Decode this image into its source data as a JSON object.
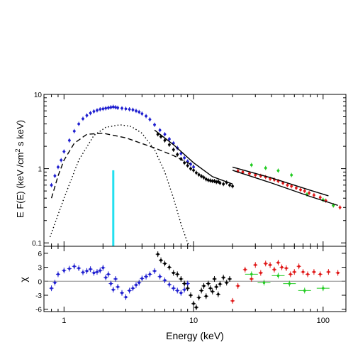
{
  "chart_data": [
    {
      "type": "scatter",
      "panel": "spectrum",
      "title": "",
      "xlabel": "Energy (keV)",
      "ylabel": "E F(E) (keV /cm",
      "ylabel_sup": "2",
      "ylabel_tail": " s keV)",
      "xscale": "log",
      "yscale": "log",
      "xlim": [
        0.7,
        150
      ],
      "ylim": [
        0.09,
        10
      ],
      "y_ticks": [
        0.1,
        1,
        10
      ],
      "y_tick_labels": [
        "0.1",
        "1",
        "10"
      ],
      "x_ticks": [
        1,
        10,
        100
      ],
      "colors": {
        "blue": "#1f1fd0",
        "black": "#000000",
        "red": "#e01818",
        "green": "#22cc22",
        "line": "#cc44aa",
        "cyan": "#22e0f0"
      },
      "series": [
        {
          "color": "blue",
          "style": "points",
          "x": [
            0.8,
            0.85,
            0.9,
            0.95,
            1.0,
            1.1,
            1.2,
            1.3,
            1.4,
            1.5,
            1.6,
            1.7,
            1.8,
            1.9,
            2.0,
            2.1,
            2.2,
            2.3,
            2.4,
            2.5,
            2.6,
            2.8,
            3.0,
            3.2,
            3.4,
            3.6,
            3.8,
            4.0,
            4.3,
            4.6,
            5.0,
            5.5,
            6.0,
            6.5,
            7.0,
            7.5,
            8.0,
            8.5,
            9.0,
            9.5,
            10.0
          ],
          "y": [
            0.6,
            0.8,
            1.05,
            1.3,
            1.7,
            2.4,
            3.2,
            4.0,
            4.7,
            5.2,
            5.6,
            5.9,
            6.1,
            6.3,
            6.4,
            6.5,
            6.6,
            6.7,
            6.8,
            6.7,
            6.6,
            6.5,
            6.4,
            6.3,
            6.2,
            6.0,
            5.8,
            5.5,
            5.1,
            4.6,
            3.9,
            3.3,
            2.9,
            2.5,
            2.2,
            1.9,
            1.6,
            1.4,
            1.25,
            1.15,
            1.05
          ]
        },
        {
          "color": "black",
          "style": "points",
          "x": [
            5.3,
            5.6,
            6.0,
            6.5,
            7.0,
            7.5,
            8.0,
            8.5,
            9.0,
            9.5,
            10.0,
            10.5,
            11.0,
            11.5,
            12.0,
            12.5,
            13.0,
            13.5,
            14.0,
            14.5,
            15.0,
            15.5,
            16.0,
            17.0,
            18.0,
            19.0,
            20.0
          ],
          "y": [
            2.9,
            2.7,
            2.4,
            2.1,
            1.8,
            1.55,
            1.35,
            1.2,
            1.1,
            1.0,
            0.95,
            0.88,
            0.83,
            0.79,
            0.76,
            0.72,
            0.7,
            0.69,
            0.68,
            0.68,
            0.66,
            0.67,
            0.64,
            0.62,
            0.65,
            0.6,
            0.58
          ]
        },
        {
          "color": "red",
          "style": "points",
          "x": [
            22,
            24,
            27,
            30,
            33,
            36,
            39,
            42,
            45,
            49,
            53,
            57,
            62,
            67,
            72,
            78,
            85,
            95,
            105,
            120,
            135
          ],
          "y": [
            0.93,
            0.9,
            0.86,
            0.82,
            0.8,
            0.77,
            0.73,
            0.71,
            0.68,
            0.64,
            0.6,
            0.58,
            0.55,
            0.52,
            0.5,
            0.47,
            0.44,
            0.41,
            0.37,
            0.32,
            0.3
          ]
        },
        {
          "color": "green",
          "style": "points",
          "x": [
            28,
            36,
            45,
            57,
            75,
            100,
            120
          ],
          "y": [
            1.12,
            1.02,
            0.94,
            0.82,
            0.45,
            0.38,
            0.32
          ]
        },
        {
          "color": "black",
          "style": "solid",
          "x": [
            5.0,
            7.0,
            10.0,
            14.0,
            20.0
          ],
          "y": [
            3.3,
            2.1,
            1.2,
            0.78,
            0.62
          ]
        },
        {
          "color": "black",
          "style": "solid",
          "x": [
            20,
            40,
            80,
            110
          ],
          "y": [
            1.05,
            0.75,
            0.51,
            0.43
          ]
        },
        {
          "color": "black",
          "style": "solid",
          "x": [
            20,
            40,
            80,
            130
          ],
          "y": [
            0.95,
            0.64,
            0.42,
            0.32
          ]
        },
        {
          "color": "black",
          "style": "dashed",
          "x": [
            0.8,
            0.9,
            1.0,
            1.2,
            1.5,
            2.0,
            3.0,
            5.0,
            7.0,
            10.0
          ],
          "y": [
            0.4,
            0.8,
            1.3,
            2.2,
            2.9,
            3.0,
            2.6,
            1.9,
            1.5,
            1.1
          ]
        },
        {
          "color": "black",
          "style": "dotted",
          "x": [
            0.78,
            1.0,
            1.3,
            1.7,
            2.1,
            2.7,
            3.3,
            4.0,
            5.0,
            6.0,
            7.0,
            8.0,
            9.0,
            9.5
          ],
          "y": [
            0.12,
            0.4,
            1.3,
            2.8,
            3.6,
            3.9,
            3.7,
            3.0,
            1.8,
            0.9,
            0.4,
            0.18,
            0.1,
            0.09
          ]
        },
        {
          "color": "cyan",
          "style": "spike",
          "x": [
            2.4,
            2.4
          ],
          "y": [
            0.09,
            0.95
          ]
        }
      ]
    },
    {
      "type": "scatter",
      "panel": "residuals",
      "title": "",
      "xlabel": "Energy (keV)",
      "ylabel": "χ",
      "xscale": "log",
      "xlim": [
        0.7,
        150
      ],
      "ylim": [
        -6.5,
        7.5
      ],
      "y_ticks": [
        -6,
        -3,
        0,
        3,
        6
      ],
      "y_tick_labels": [
        "-6",
        "-3",
        "0",
        "3",
        "6"
      ],
      "x_ticks": [
        1,
        10,
        100
      ],
      "x_tick_labels": [
        "1",
        "10",
        "100"
      ],
      "zero_line": 0,
      "series": [
        {
          "color": "blue",
          "x": [
            0.8,
            0.85,
            0.9,
            1.0,
            1.1,
            1.2,
            1.3,
            1.4,
            1.5,
            1.6,
            1.7,
            1.8,
            1.9,
            2.0,
            2.1,
            2.2,
            2.3,
            2.4,
            2.5,
            2.6,
            2.8,
            3.0,
            3.2,
            3.4,
            3.6,
            3.8,
            4.0,
            4.3,
            4.6,
            5.0,
            5.5,
            6.0,
            6.5,
            7.0,
            7.5,
            8.0,
            8.5,
            9.0
          ],
          "y": [
            -1.5,
            -0.3,
            1.5,
            2.3,
            2.7,
            3.2,
            2.8,
            1.9,
            2.2,
            2.6,
            1.8,
            2.0,
            2.3,
            2.9,
            0.8,
            1.5,
            -0.5,
            -1.8,
            0.5,
            -1.2,
            -2.5,
            -3.4,
            -2.0,
            -1.5,
            -0.8,
            -0.3,
            0.6,
            1.0,
            1.5,
            2.2,
            1.0,
            0.2,
            -0.7,
            -1.5,
            -2.0,
            -2.5,
            -1.8,
            -0.5
          ]
        },
        {
          "color": "black",
          "x": [
            5.3,
            5.6,
            6.0,
            6.5,
            7.0,
            7.5,
            8.0,
            8.5,
            9.0,
            9.5,
            10.0,
            10.5,
            11.0,
            11.5,
            12.0,
            12.5,
            13.0,
            13.5,
            14.0,
            14.5,
            15.0,
            15.5,
            16.0,
            17.0,
            18.0,
            19.0
          ],
          "y": [
            5.8,
            4.5,
            3.8,
            3.0,
            1.8,
            1.5,
            0.5,
            -0.5,
            -1.5,
            -3.0,
            -4.8,
            -5.6,
            -3.5,
            -2.0,
            -1.0,
            -3.2,
            -0.5,
            -1.5,
            -2.2,
            0.5,
            -1.2,
            -2.8,
            -0.6,
            0.8,
            -0.3,
            0.5
          ]
        },
        {
          "color": "red",
          "x": [
            20,
            22,
            25,
            28,
            30,
            33,
            36,
            39,
            42,
            45,
            48,
            52,
            56,
            60,
            65,
            70,
            76,
            85,
            95,
            110,
            130
          ],
          "y": [
            -4.2,
            -1.0,
            2.5,
            0.5,
            3.5,
            1.8,
            3.8,
            3.5,
            2.5,
            4.0,
            3.0,
            2.8,
            1.5,
            2.0,
            3.2,
            2.0,
            1.5,
            2.0,
            1.5,
            2.0,
            1.8
          ]
        },
        {
          "color": "green",
          "x": [
            28,
            35,
            45,
            55,
            72,
            100
          ],
          "y": [
            1.5,
            -0.3,
            1.2,
            -0.5,
            -2.0,
            -1.5
          ]
        }
      ]
    }
  ]
}
